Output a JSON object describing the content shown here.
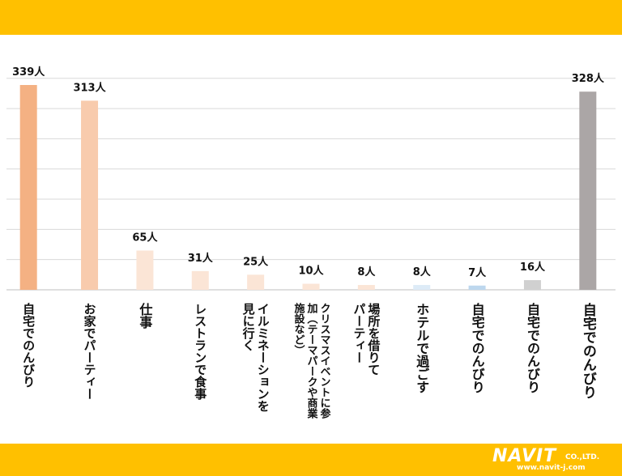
{
  "logo": {
    "main": "NAVIT",
    "suffix": "CO.,LTD.",
    "url": "www.navit-j.com"
  },
  "chart_data": {
    "type": "bar",
    "unit": "人",
    "ylim": [
      0,
      370
    ],
    "grid": true,
    "categories": [
      [
        "自宅でのんびり"
      ],
      [
        "お家でパーティー"
      ],
      [
        "仕事"
      ],
      [
        "レストランで食事"
      ],
      [
        "イルミネーションを",
        "見に行く"
      ],
      [
        "クリスマスイベントに参",
        "加（テーマパークや商業",
        "施設など）"
      ],
      [
        "場所を借りて",
        "パーティー"
      ],
      [
        "ホテルで過ごす"
      ],
      [
        "自宅でのんびり"
      ],
      [
        "自宅でのんびり"
      ],
      [
        "自宅でのんびり"
      ]
    ],
    "values": [
      339,
      313,
      65,
      31,
      25,
      10,
      8,
      8,
      7,
      16,
      328
    ],
    "value_labels": [
      "339人",
      "313人",
      "65人",
      "31人",
      "25人",
      "10人",
      "8人",
      "8人",
      "7人",
      "16人",
      "328人"
    ],
    "colors": [
      "#F4B183",
      "#F8CBAD",
      "#FBE5D6",
      "#FBE5D6",
      "#FBE5D6",
      "#FBE5D6",
      "#FBE5D6",
      "#DDEBF7",
      "#BDD7EE",
      "#D0D0D0",
      "#ABA6A6"
    ],
    "label_sizes": [
      15,
      15,
      16,
      15,
      15,
      13,
      15,
      16,
      16,
      16,
      17
    ]
  }
}
